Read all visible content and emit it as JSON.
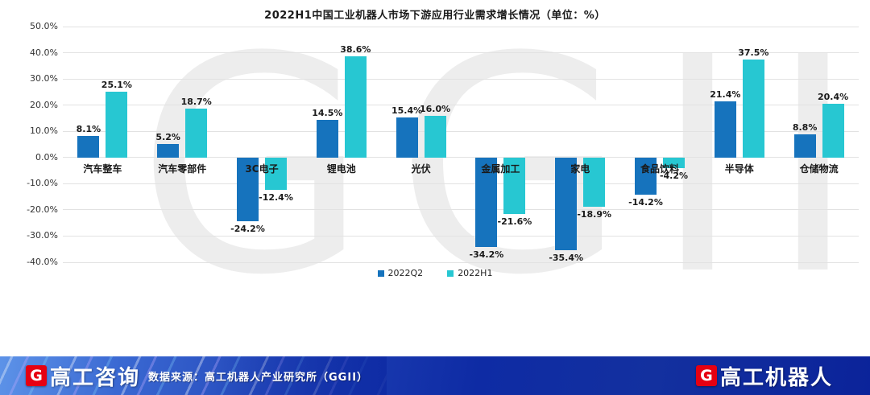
{
  "chart_data": {
    "type": "bar",
    "title": "2022H1中国工业机器人市场下游应用行业需求增长情况（单位：%）",
    "categories": [
      "汽车整车",
      "汽车零部件",
      "3C电子",
      "锂电池",
      "光伏",
      "金属加工",
      "家电",
      "食品饮料",
      "半导体",
      "仓储物流"
    ],
    "series": [
      {
        "name": "2022Q2",
        "color": "#1673bd",
        "values": [
          8.1,
          5.2,
          -24.2,
          14.5,
          15.4,
          -34.2,
          -35.4,
          -14.2,
          21.4,
          8.8
        ]
      },
      {
        "name": "2022H1",
        "color": "#27c7d2",
        "values": [
          25.1,
          18.7,
          -12.4,
          38.6,
          16.0,
          -21.6,
          -18.9,
          -4.2,
          37.5,
          20.4
        ]
      }
    ],
    "ylim": [
      -40,
      50
    ],
    "ytick_step": 10,
    "ytick_labels": [
      "50.0%",
      "40.0%",
      "30.0%",
      "20.0%",
      "10.0%",
      "0.0%",
      "-10.0%",
      "-20.0%",
      "-30.0%",
      "-40.0%"
    ],
    "grid": true,
    "legend_position": "bottom",
    "watermark": "GGII"
  },
  "footer": {
    "left_logo_letter": "G",
    "left_logo_text": "高工咨询",
    "source_text": "数据来源：高工机器人产业研究所（GGII）",
    "right_logo_letter": "G",
    "right_logo_text": "高工机器人"
  }
}
